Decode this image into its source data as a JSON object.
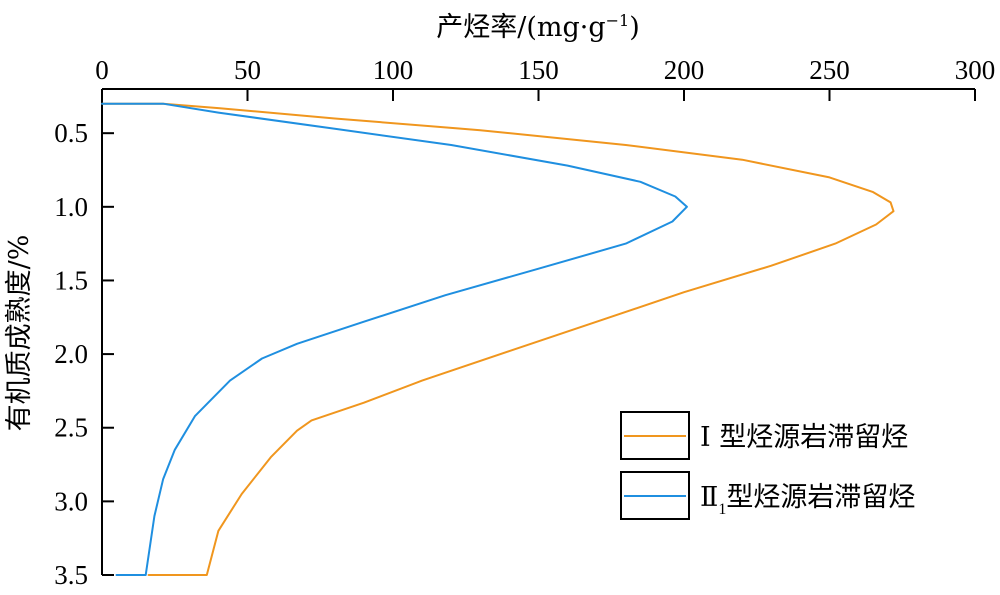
{
  "chart_data": {
    "type": "line",
    "xlabel_main": "产烃率/(mg·g",
    "xlabel_sup": "−1",
    "xlabel_end": ")",
    "ylabel": "有机质成熟度/%",
    "x_axis_position": "top",
    "y_axis_inverted": true,
    "xlim": [
      0,
      300
    ],
    "ylim": [
      0.2,
      3.5
    ],
    "x_ticks": [
      0,
      50,
      100,
      150,
      200,
      250,
      300
    ],
    "x_tick_labels": [
      "0",
      "50",
      "100",
      "150",
      "200",
      "250",
      "300"
    ],
    "y_ticks": [
      0.5,
      1.0,
      1.5,
      2.0,
      2.5,
      3.0,
      3.5
    ],
    "y_tick_labels": [
      "0.5",
      "1.0",
      "1.5",
      "2.0",
      "2.5",
      "3.0",
      "3.5"
    ],
    "grid": false,
    "legend_position": "lower-right",
    "series": [
      {
        "name_main": "Ⅰ 型烃源岩滞留烃",
        "name_sub": "",
        "color": "#f0961e",
        "points": [
          [
            0,
            0.3
          ],
          [
            21,
            0.3
          ],
          [
            40,
            0.33
          ],
          [
            80,
            0.4
          ],
          [
            130,
            0.48
          ],
          [
            180,
            0.58
          ],
          [
            220,
            0.68
          ],
          [
            250,
            0.8
          ],
          [
            265,
            0.9
          ],
          [
            271,
            0.97
          ],
          [
            272,
            1.03
          ],
          [
            266,
            1.12
          ],
          [
            252,
            1.25
          ],
          [
            230,
            1.4
          ],
          [
            200,
            1.58
          ],
          [
            170,
            1.78
          ],
          [
            140,
            1.98
          ],
          [
            110,
            2.18
          ],
          [
            90,
            2.33
          ],
          [
            72,
            2.45
          ],
          [
            67,
            2.52
          ],
          [
            58,
            2.7
          ],
          [
            48,
            2.95
          ],
          [
            40,
            3.2
          ],
          [
            36,
            3.5
          ],
          [
            16,
            3.5
          ]
        ]
      },
      {
        "name_main": "Ⅱ",
        "name_sub": "1",
        "name_end": "型烃源岩滞留烃",
        "color": "#1f8fe0",
        "points": [
          [
            0,
            0.3
          ],
          [
            21,
            0.3
          ],
          [
            40,
            0.36
          ],
          [
            80,
            0.47
          ],
          [
            120,
            0.58
          ],
          [
            160,
            0.72
          ],
          [
            185,
            0.83
          ],
          [
            197,
            0.93
          ],
          [
            201,
            1.0
          ],
          [
            196,
            1.1
          ],
          [
            180,
            1.25
          ],
          [
            150,
            1.42
          ],
          [
            118,
            1.6
          ],
          [
            90,
            1.78
          ],
          [
            67,
            1.93
          ],
          [
            55,
            2.03
          ],
          [
            44,
            2.18
          ],
          [
            32,
            2.42
          ],
          [
            25,
            2.65
          ],
          [
            21,
            2.85
          ],
          [
            18,
            3.1
          ],
          [
            15,
            3.5
          ],
          [
            5,
            3.5
          ]
        ]
      }
    ]
  }
}
